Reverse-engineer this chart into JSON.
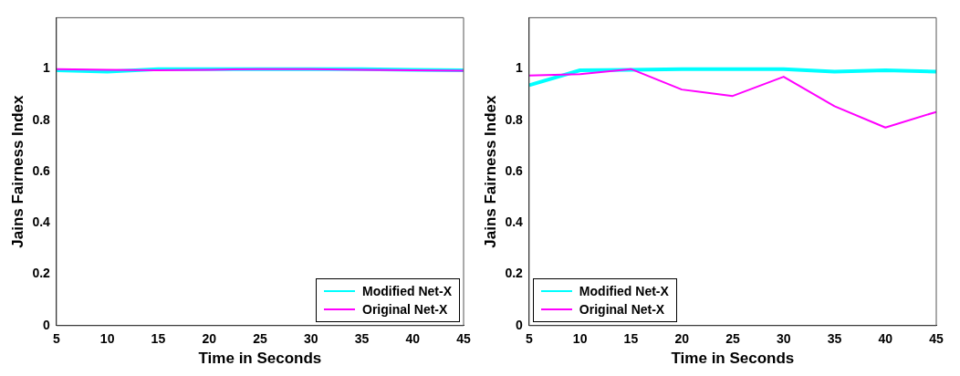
{
  "chart_data": [
    {
      "type": "line",
      "xlabel": "Time in Seconds",
      "ylabel": "Jains Fairness Index",
      "x": [
        5,
        10,
        15,
        20,
        25,
        30,
        35,
        40,
        45
      ],
      "series": [
        {
          "name": "Modified Net-X",
          "color": "#00ffff",
          "values": [
            0.995,
            0.99,
            1.0,
            1.0,
            1.0,
            1.0,
            1.0,
            0.997,
            0.995
          ]
        },
        {
          "name": "Original Net-X",
          "color": "#ff00ff",
          "values": [
            1.0,
            0.997,
            0.995,
            0.997,
            1.0,
            1.0,
            0.997,
            0.995,
            0.993
          ]
        }
      ],
      "xlim": [
        5,
        45
      ],
      "xticks": [
        5,
        10,
        15,
        20,
        25,
        30,
        35,
        40,
        45
      ],
      "ylim": [
        0,
        1.2
      ],
      "yticks": [
        0,
        0.2,
        0.4,
        0.6,
        0.8,
        1
      ],
      "grid": false,
      "legend": "bottom right",
      "line_style": "solid",
      "marker": "none"
    },
    {
      "type": "line",
      "xlabel": "Time in Seconds",
      "ylabel": "Jains Fairness Index",
      "x": [
        5,
        10,
        15,
        20,
        25,
        30,
        35,
        40,
        45
      ],
      "series": [
        {
          "name": "Modified Net-X",
          "color": "#00ffff",
          "values": [
            0.937,
            0.995,
            0.997,
            1.0,
            1.0,
            1.0,
            0.99,
            0.995,
            0.99
          ]
        },
        {
          "name": "Original Net-X",
          "color": "#ff00ff",
          "values": [
            0.975,
            0.98,
            1.0,
            0.92,
            0.895,
            0.97,
            0.855,
            0.772,
            0.833
          ]
        }
      ],
      "xlim": [
        5,
        45
      ],
      "xticks": [
        5,
        10,
        15,
        20,
        25,
        30,
        35,
        40,
        45
      ],
      "ylim": [
        0,
        1.2
      ],
      "yticks": [
        0,
        0.2,
        0.4,
        0.6,
        0.8,
        1
      ],
      "grid": false,
      "legend": "bottom left",
      "line_style": "solid",
      "marker": "none"
    }
  ]
}
